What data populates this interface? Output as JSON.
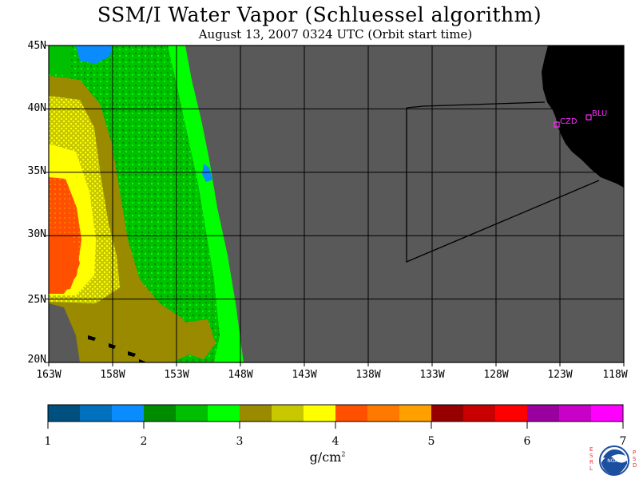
{
  "title": "SSM/I Water Vapor (Schluessel algorithm)",
  "subtitle": "August 13, 2007  0324 UTC  (Orbit start time)",
  "map": {
    "lat_labels": [
      "45N",
      "40N",
      "35N",
      "30N",
      "25N",
      "20N"
    ],
    "lon_labels": [
      "163W",
      "158W",
      "153W",
      "148W",
      "143W",
      "138W",
      "133W",
      "128W",
      "123W",
      "118W"
    ],
    "stations": [
      "CZD",
      "BLU"
    ],
    "colors": {
      "ocean_no_data": "#595959",
      "land": "#000000",
      "station": "#ff2bff"
    }
  },
  "colorbar": {
    "tick_labels": [
      "1",
      "2",
      "3",
      "4",
      "5",
      "6",
      "7"
    ],
    "units": "g/cm",
    "units_exp": "2",
    "colors": [
      "#00507f",
      "#0070bf",
      "#0a8cff",
      "#008c00",
      "#00bf00",
      "#00ff00",
      "#9a8a00",
      "#c8c800",
      "#ffff00",
      "#ff5000",
      "#ff7800",
      "#ffa000",
      "#960000",
      "#c80000",
      "#ff0000",
      "#9a00a0",
      "#c800c8",
      "#ff00ff"
    ]
  },
  "logo": {
    "left_letters": "ESRL",
    "right_letters": "PSD",
    "center": "NOAA"
  }
}
